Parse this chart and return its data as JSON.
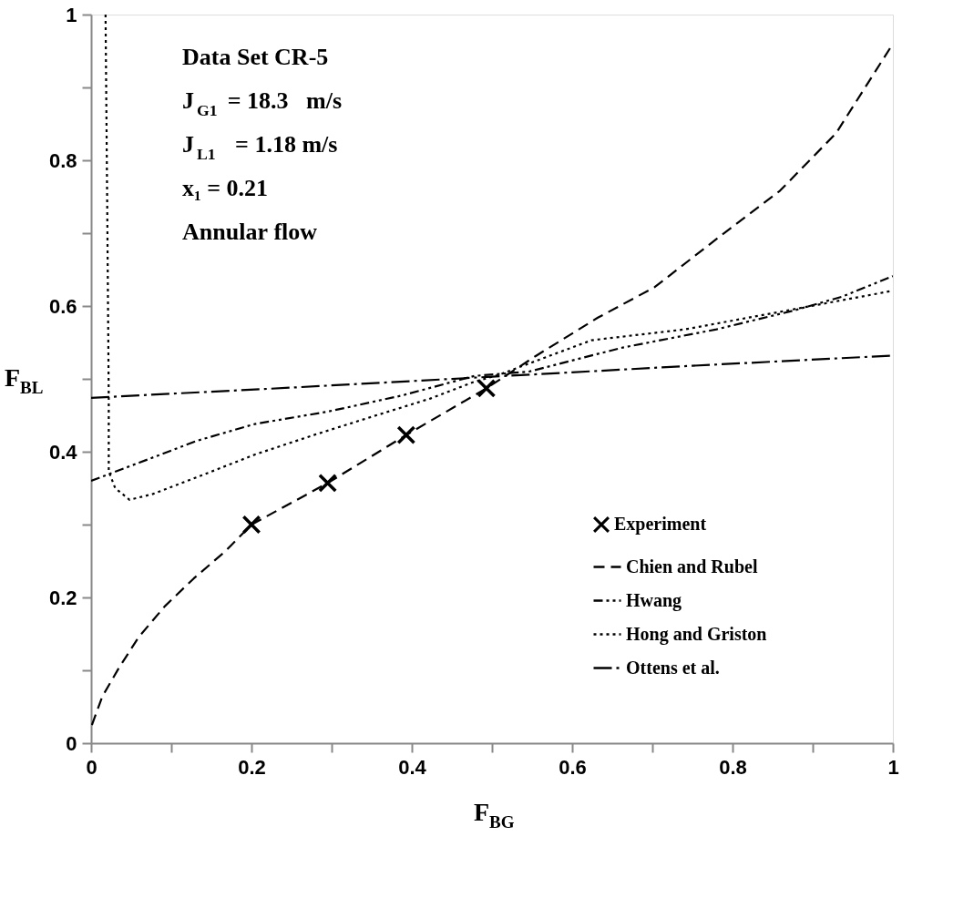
{
  "chart_data": {
    "type": "line",
    "xlabel": "F$_{BG}$",
    "ylabel": "F$_{BL}$",
    "xlim": [
      0,
      1
    ],
    "ylim": [
      0,
      1
    ],
    "xticks": [
      0,
      {
        "value": 0.1,
        "label": null
      },
      0.2,
      {
        "value": 0.3,
        "label": null
      },
      0.4,
      {
        "value": 0.5,
        "label": null
      },
      0.6,
      {
        "value": 0.7,
        "label": null
      },
      0.8,
      {
        "value": 0.9,
        "label": null
      },
      1
    ],
    "yticks": [
      0,
      {
        "value": 0.1,
        "label": null
      },
      0.2,
      {
        "value": 0.3,
        "label": null
      },
      0.4,
      {
        "value": 0.5,
        "label": null
      },
      0.6,
      {
        "value": 0.7,
        "label": null
      },
      0.8,
      {
        "value": 0.9,
        "label": null
      },
      1
    ],
    "grid": false,
    "legend": "bottom right",
    "annotations": [
      "Data Set CR-5",
      "J$_{G1}$ = 18.3   m/s",
      "J$_{L1}$  = 1.18 m/s",
      "x₁ = 0.21",
      "Annular flow"
    ],
    "series": [
      {
        "name": "Experiment",
        "type": "scatter",
        "marker": "cross",
        "color": "#000000",
        "x": [
          0.2,
          0.295,
          0.393,
          0.493
        ],
        "values": [
          0.3,
          0.357,
          0.423,
          0.487
        ]
      },
      {
        "name": "Chien and Rubel",
        "type": "line",
        "line_style": "dashed",
        "color": "#000000",
        "x": [
          0.001,
          0.014,
          0.034,
          0.059,
          0.092,
          0.128,
          0.168,
          0.2,
          0.295,
          0.393,
          0.493,
          0.554,
          0.632,
          0.703,
          0.78,
          0.859,
          0.929,
          1.0
        ],
        "values": [
          0.025,
          0.064,
          0.102,
          0.145,
          0.188,
          0.226,
          0.264,
          0.3,
          0.357,
          0.423,
          0.487,
          0.531,
          0.584,
          0.626,
          0.692,
          0.758,
          0.837,
          0.96
        ]
      },
      {
        "name": "Hwang",
        "type": "line",
        "line_style": "dashdot",
        "color": "#000000",
        "x": [
          0,
          0.06,
          0.132,
          0.204,
          0.295,
          0.387,
          0.478,
          0.546,
          0.663,
          0.78,
          0.877,
          0.937,
          1.0
        ],
        "values": [
          0.36,
          0.385,
          0.415,
          0.438,
          0.455,
          0.477,
          0.504,
          0.51,
          0.543,
          0.568,
          0.594,
          0.613,
          0.641
        ]
      },
      {
        "name": "Hong and Griston",
        "type": "line",
        "line_style": "dotted",
        "color": "#000000",
        "x": [
          0.018,
          0.02,
          0.022,
          0.022,
          0.03,
          0.048,
          0.077,
          0.132,
          0.204,
          0.278,
          0.35,
          0.423,
          0.478,
          0.507,
          0.624,
          0.741,
          0.859,
          1.0
        ],
        "values": [
          1.0,
          0.75,
          0.473,
          0.373,
          0.35,
          0.334,
          0.342,
          0.365,
          0.396,
          0.423,
          0.448,
          0.473,
          0.496,
          0.505,
          0.553,
          0.568,
          0.592,
          0.621
        ]
      },
      {
        "name": "Ottens et al.",
        "type": "line",
        "line_style": "longdashdot",
        "color": "#000000",
        "x": [
          0,
          0.25,
          0.5,
          0.75,
          1.0
        ],
        "values": [
          0.474,
          0.488,
          0.503,
          0.518,
          0.532
        ]
      }
    ]
  }
}
